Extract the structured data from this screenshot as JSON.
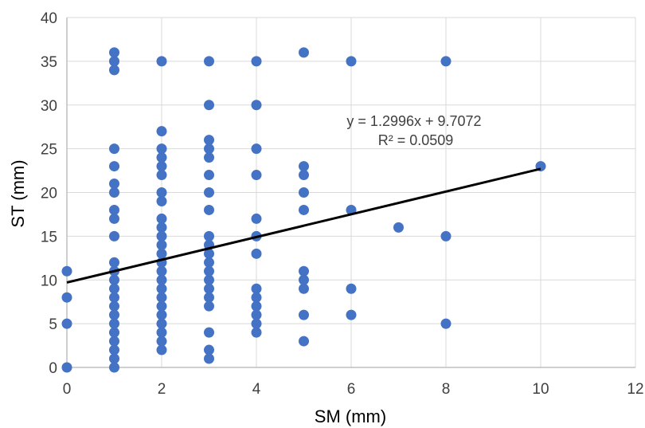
{
  "chart_data": {
    "type": "scatter",
    "title": "",
    "xlabel": "SM (mm)",
    "ylabel": "ST (mm)",
    "xlim": [
      0,
      12
    ],
    "ylim": [
      0,
      40
    ],
    "xticks": [
      "0",
      "2",
      "4",
      "6",
      "8",
      "10",
      "12"
    ],
    "yticks": [
      "0",
      "5",
      "10",
      "15",
      "20",
      "25",
      "30",
      "35",
      "40"
    ],
    "grid": "both",
    "legend": "none",
    "colors": {
      "points": "#4472C4",
      "trendline": "#000000",
      "grid": "#d9d9d9",
      "axis": "#bfbfbf"
    },
    "points": [
      [
        0,
        0
      ],
      [
        0,
        5
      ],
      [
        0,
        8
      ],
      [
        0,
        11
      ],
      [
        1,
        0
      ],
      [
        1,
        1
      ],
      [
        1,
        2
      ],
      [
        1,
        3
      ],
      [
        1,
        4
      ],
      [
        1,
        5
      ],
      [
        1,
        6
      ],
      [
        1,
        7
      ],
      [
        1,
        8
      ],
      [
        1,
        9
      ],
      [
        1,
        10
      ],
      [
        1,
        11
      ],
      [
        1,
        12
      ],
      [
        1,
        15
      ],
      [
        1,
        17
      ],
      [
        1,
        18
      ],
      [
        1,
        20
      ],
      [
        1,
        21
      ],
      [
        1,
        23
      ],
      [
        1,
        25
      ],
      [
        1,
        34
      ],
      [
        1,
        35
      ],
      [
        1,
        36
      ],
      [
        2,
        2
      ],
      [
        2,
        3
      ],
      [
        2,
        4
      ],
      [
        2,
        5
      ],
      [
        2,
        6
      ],
      [
        2,
        7
      ],
      [
        2,
        8
      ],
      [
        2,
        9
      ],
      [
        2,
        10
      ],
      [
        2,
        11
      ],
      [
        2,
        12
      ],
      [
        2,
        13
      ],
      [
        2,
        14
      ],
      [
        2,
        15
      ],
      [
        2,
        16
      ],
      [
        2,
        17
      ],
      [
        2,
        19
      ],
      [
        2,
        20
      ],
      [
        2,
        22
      ],
      [
        2,
        23
      ],
      [
        2,
        24
      ],
      [
        2,
        25
      ],
      [
        2,
        27
      ],
      [
        2,
        35
      ],
      [
        3,
        1
      ],
      [
        3,
        2
      ],
      [
        3,
        4
      ],
      [
        3,
        7
      ],
      [
        3,
        8
      ],
      [
        3,
        9
      ],
      [
        3,
        10
      ],
      [
        3,
        11
      ],
      [
        3,
        12
      ],
      [
        3,
        13
      ],
      [
        3,
        14
      ],
      [
        3,
        15
      ],
      [
        3,
        18
      ],
      [
        3,
        20
      ],
      [
        3,
        22
      ],
      [
        3,
        24
      ],
      [
        3,
        25
      ],
      [
        3,
        26
      ],
      [
        3,
        30
      ],
      [
        3,
        35
      ],
      [
        4,
        4
      ],
      [
        4,
        5
      ],
      [
        4,
        6
      ],
      [
        4,
        7
      ],
      [
        4,
        8
      ],
      [
        4,
        9
      ],
      [
        4,
        13
      ],
      [
        4,
        15
      ],
      [
        4,
        17
      ],
      [
        4,
        22
      ],
      [
        4,
        25
      ],
      [
        4,
        30
      ],
      [
        4,
        35
      ],
      [
        5,
        3
      ],
      [
        5,
        6
      ],
      [
        5,
        9
      ],
      [
        5,
        10
      ],
      [
        5,
        11
      ],
      [
        5,
        18
      ],
      [
        5,
        20
      ],
      [
        5,
        22
      ],
      [
        5,
        23
      ],
      [
        5,
        36
      ],
      [
        6,
        6
      ],
      [
        6,
        9
      ],
      [
        6,
        18
      ],
      [
        6,
        35
      ],
      [
        7,
        16
      ],
      [
        8,
        5
      ],
      [
        8,
        15
      ],
      [
        8,
        35
      ],
      [
        10,
        23
      ]
    ],
    "trendline": {
      "slope": 1.2996,
      "intercept": 9.7072,
      "x_range": [
        0,
        10
      ],
      "equation": "y = 1.2996x + 9.7072",
      "r_squared": "R² = 0.0509"
    }
  }
}
